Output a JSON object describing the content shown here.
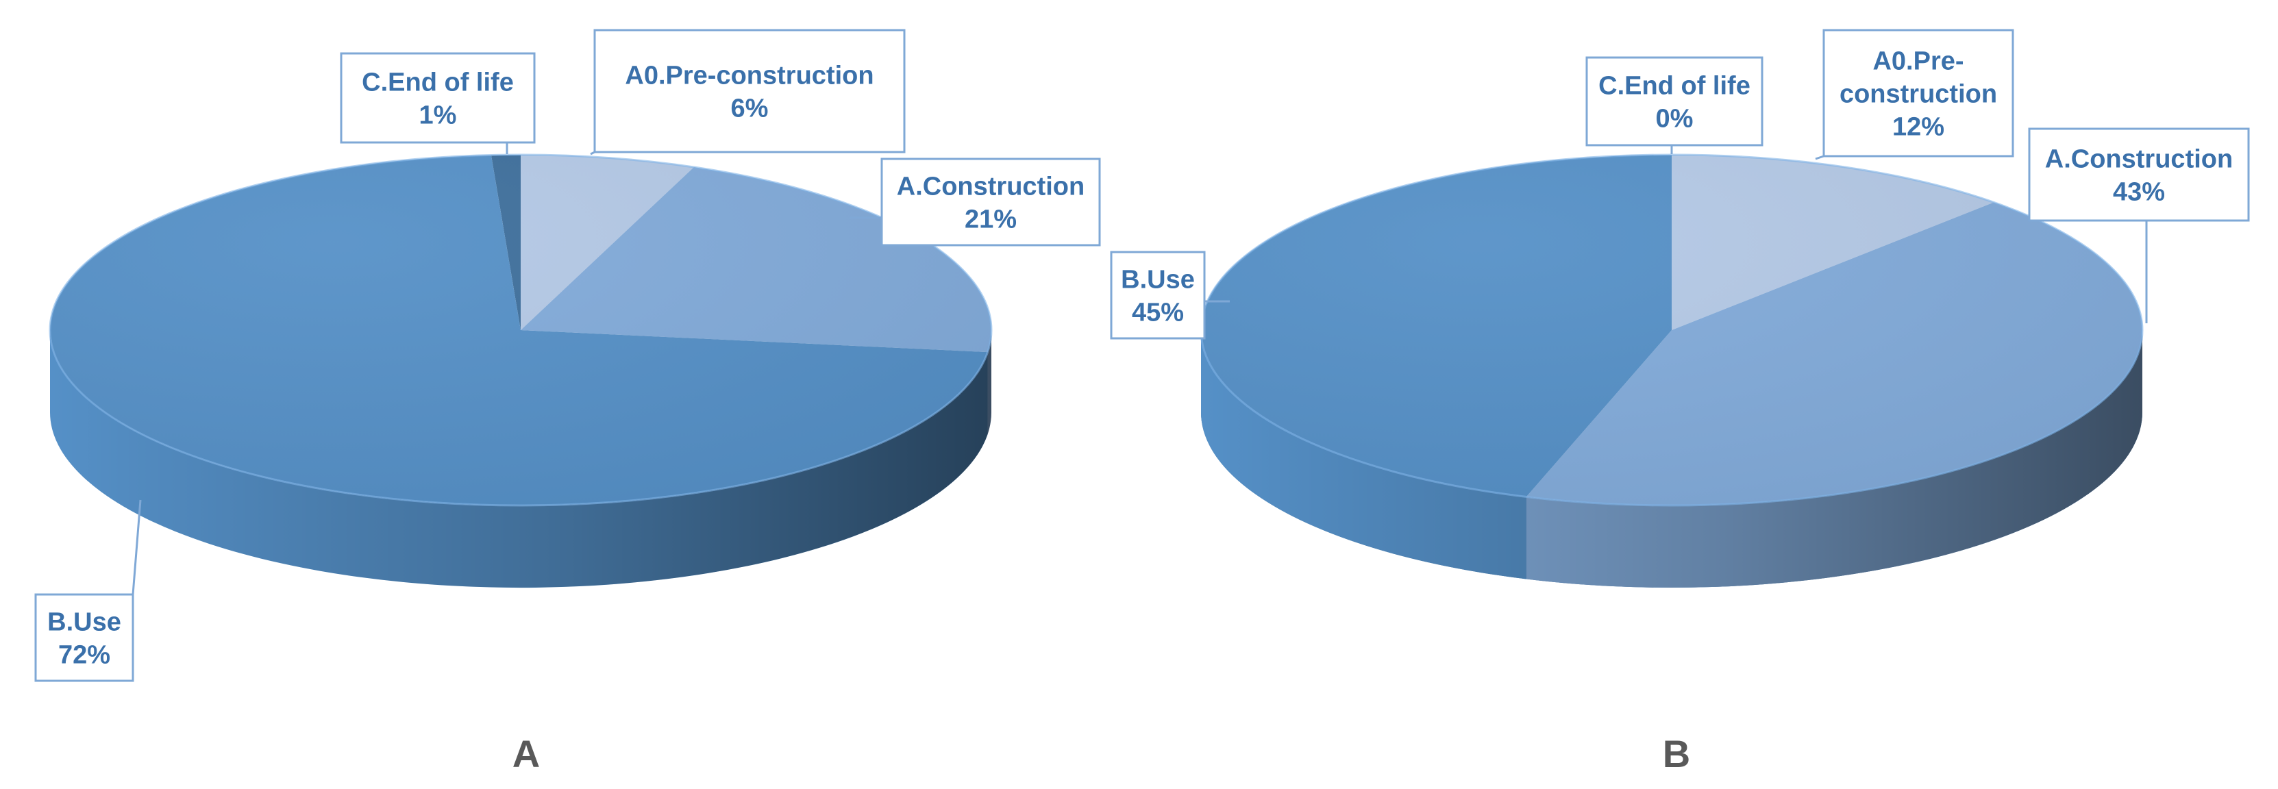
{
  "colors": {
    "c_end_of_life": "#3e6f9c",
    "a0_pre_construction": "#b4c9e6",
    "a_construction": "#82abda",
    "b_use": "#5590c7",
    "label_text": "#3a70aa",
    "label_border": "#7fa8d6",
    "caption_text": "#595959"
  },
  "chart_data": [
    {
      "type": "pie",
      "caption": "A",
      "slices": [
        {
          "name": "C.End of life",
          "value": 1,
          "label_lines": [
            "C.End of life",
            "1%"
          ]
        },
        {
          "name": "A0.Pre-construction",
          "value": 6,
          "label_lines": [
            "A0.Pre-construction",
            "6%"
          ]
        },
        {
          "name": "A.Construction",
          "value": 21,
          "label_lines": [
            "A.Construction",
            "21%"
          ]
        },
        {
          "name": "B.Use",
          "value": 72,
          "label_lines": [
            "B.Use",
            "72%"
          ]
        }
      ]
    },
    {
      "type": "pie",
      "caption": "B",
      "slices": [
        {
          "name": "C.End of life",
          "value": 0,
          "label_lines": [
            "C.End of life",
            "0%"
          ]
        },
        {
          "name": "A0.Pre-construction",
          "value": 12,
          "label_lines": [
            "A0.Pre-",
            "construction",
            "12%"
          ]
        },
        {
          "name": "A.Construction",
          "value": 43,
          "label_lines": [
            "A.Construction",
            "43%"
          ]
        },
        {
          "name": "B.Use",
          "value": 45,
          "label_lines": [
            "B.Use",
            "45%"
          ]
        }
      ]
    }
  ]
}
